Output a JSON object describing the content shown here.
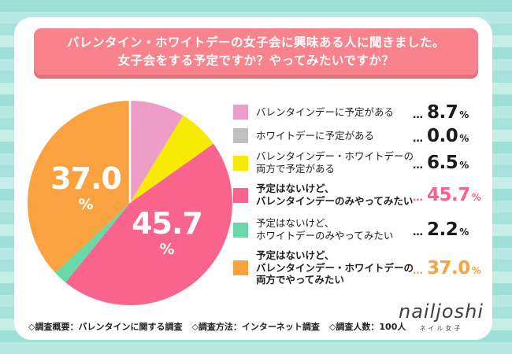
{
  "header": {
    "line1": "バレンタイン・ホワイトデーの女子会に興味ある人に聞きました。",
    "line2": "女子会をする予定ですか？やってみたいですか？"
  },
  "chart_data": {
    "type": "pie",
    "title": "バレンタイン・ホワイトデーの女子会に興味ある人に聞きました。女子会をする予定ですか？やってみたいですか？",
    "categories": [
      "バレンタインデーに予定がある",
      "ホワイトデーに予定がある",
      "バレンタインデー・ホワイトデーの両方で予定がある",
      "予定はないけど、バレンタインデーのみやってみたい",
      "予定はないけど、ホワイトデーのみやってみたい",
      "予定はないけど、バレンタインデー・ホワイトデーの両方でやってみたい"
    ],
    "values": [
      8.7,
      0.0,
      6.5,
      45.7,
      2.2,
      37.0
    ],
    "colors": [
      "#EE9DC9",
      "#C0C0C0",
      "#F8EB03",
      "#F9648C",
      "#69D7A8",
      "#F9A23F"
    ],
    "start_angle": "top",
    "direction": "clockwise",
    "legend_position": "right",
    "inside_labels": [
      {
        "value": "37.0",
        "unit": "%"
      },
      {
        "value": "45.7",
        "unit": "%"
      }
    ]
  },
  "legend": {
    "leader": "…",
    "items": [
      {
        "label_lines": [
          "バレンタインデーに予定がある"
        ],
        "value": "8.7",
        "unit": "%",
        "color": "#EE9DC9",
        "value_color": "#1A1A1A",
        "emphasized": false
      },
      {
        "label_lines": [
          "ホワイトデーに予定がある"
        ],
        "value": "0.0",
        "unit": "%",
        "color": "#C0C0C0",
        "value_color": "#1A1A1A",
        "emphasized": false
      },
      {
        "label_lines": [
          "バレンタインデー・ホワイトデーの",
          "両方で予定がある"
        ],
        "value": "6.5",
        "unit": "%",
        "color": "#F8EB03",
        "value_color": "#1A1A1A",
        "emphasized": false
      },
      {
        "label_lines": [
          "予定はないけど、",
          "バレンタインデーのみやってみたい"
        ],
        "value": "45.7",
        "unit": "%",
        "color": "#F9648C",
        "value_color": "#F9618C",
        "emphasized": true
      },
      {
        "label_lines": [
          "予定はないけど、",
          "ホワイトデーのみやってみたい"
        ],
        "value": "2.2",
        "unit": "%",
        "color": "#69D7A8",
        "value_color": "#1A1A1A",
        "emphasized": false
      },
      {
        "label_lines": [
          "予定はないけど、",
          "バレンタインデー・ホワイトデーの",
          "両方でやってみたい"
        ],
        "value": "37.0",
        "unit": "%",
        "color": "#F9A23F",
        "value_color": "#F9A23F",
        "emphasized": true
      }
    ]
  },
  "footer": {
    "items": [
      "◇調査概要：バレンタインに関する調査",
      "◇調査方法：インターネット調査",
      "◇調査人数：100人"
    ]
  },
  "logo": {
    "name": "nailjoshi",
    "subtitle": "ネイル女子"
  }
}
